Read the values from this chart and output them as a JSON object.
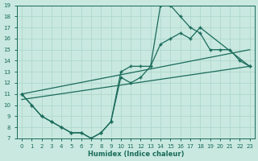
{
  "xlabel": "Humidex (Indice chaleur)",
  "xlim": [
    -0.5,
    23.5
  ],
  "ylim": [
    7,
    19
  ],
  "xticks": [
    0,
    1,
    2,
    3,
    4,
    5,
    6,
    7,
    8,
    9,
    10,
    11,
    12,
    13,
    14,
    15,
    16,
    17,
    18,
    19,
    20,
    21,
    22,
    23
  ],
  "yticks": [
    7,
    8,
    9,
    10,
    11,
    12,
    13,
    14,
    15,
    16,
    17,
    18,
    19
  ],
  "background_color": "#c8e8e0",
  "line_color": "#1a6b5a",
  "grid_color": "#b0d8cc",
  "line1_x": [
    0,
    1,
    2,
    3,
    4,
    5,
    6,
    7,
    8,
    9,
    10,
    11,
    12,
    13,
    14,
    15,
    16,
    17,
    18,
    19,
    20,
    21,
    22,
    23
  ],
  "line1_y": [
    11,
    10,
    9,
    8.5,
    8,
    7.5,
    7.5,
    7,
    7.5,
    8.5,
    12.5,
    12,
    12.5,
    13.5,
    19,
    19,
    18,
    17,
    16.5,
    15,
    15,
    15,
    14,
    13.5
  ],
  "line2_x": [
    0,
    1,
    2,
    3,
    4,
    5,
    6,
    7,
    8,
    9,
    10,
    11,
    12,
    13,
    14,
    15,
    16,
    17,
    18,
    23
  ],
  "line2_y": [
    11,
    10,
    9,
    8.5,
    8,
    7.5,
    7.5,
    7,
    7.5,
    8.5,
    13,
    13.5,
    13.5,
    13.5,
    15.5,
    16,
    16.5,
    16,
    17,
    13.5
  ],
  "line3_x": [
    0,
    23
  ],
  "line3_y": [
    11,
    15
  ],
  "line4_x": [
    0,
    23
  ],
  "line4_y": [
    10.5,
    13.5
  ],
  "markersize": 2.5,
  "linewidth": 0.9
}
